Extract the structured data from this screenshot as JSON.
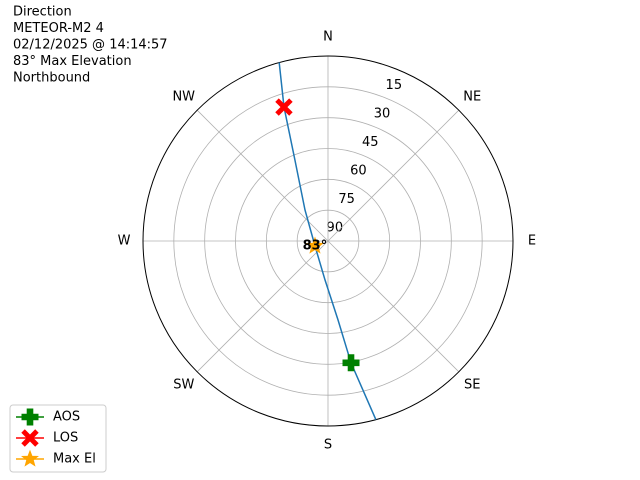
{
  "chart_data": {
    "type": "polar",
    "text_lines": [
      "Direction",
      "METEOR-M2 4",
      "02/12/2025 @ 14:14:57",
      "83° Max Elevation",
      "Northbound"
    ],
    "xlim": [
      0,
      360
    ],
    "xticks": [
      {
        "value": 0,
        "label": "N"
      },
      {
        "value": 45,
        "label": "NE"
      },
      {
        "value": 90,
        "label": "E"
      },
      {
        "value": 135,
        "label": "SE"
      },
      {
        "value": 180,
        "label": "S"
      },
      {
        "value": 225,
        "label": "SW"
      },
      {
        "value": 270,
        "label": "W"
      },
      {
        "value": 315,
        "label": "NW"
      }
    ],
    "ylim": [
      90,
      0
    ],
    "yticks": [
      15,
      30,
      45,
      60,
      75,
      90
    ],
    "grid": true,
    "track": {
      "color": "#1f77b4",
      "azimuth": [
        344.7,
        341.8,
        337.8,
        323.4,
        249,
        184.4,
        172.8,
        169.3,
        165
      ],
      "elevation": [
        0,
        21.4,
        47.4,
        71.2,
        83.2,
        71,
        51.3,
        29.7,
        0
      ]
    },
    "series": [
      {
        "name": "AOS",
        "color": "#008000",
        "marker": "plus",
        "azimuth": [
          169.3
        ],
        "elevation": [
          29.7
        ]
      },
      {
        "name": "LOS",
        "color": "#ff0000",
        "marker": "x",
        "azimuth": [
          341.8
        ],
        "elevation": [
          21.4
        ]
      },
      {
        "name": "Max El",
        "color": "#ffa500",
        "marker": "star",
        "azimuth": [
          249
        ],
        "elevation": [
          83.2
        ]
      }
    ],
    "annotation": "83°",
    "legend": "lower left"
  }
}
